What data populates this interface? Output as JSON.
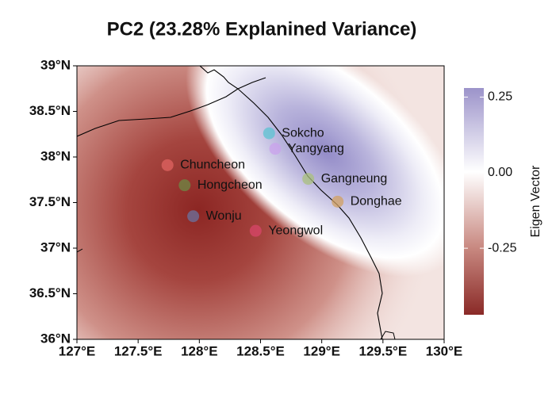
{
  "chart_data": {
    "type": "scatter",
    "title": "PC2 (23.28%  Explanined  Variance)",
    "xlim": [
      127,
      130
    ],
    "ylim": [
      36,
      39
    ],
    "xticks": [
      {
        "value": 127,
        "label": "127°E"
      },
      {
        "value": 127.5,
        "label": "127.5°E"
      },
      {
        "value": 128,
        "label": "128°E"
      },
      {
        "value": 128.5,
        "label": "128.5°E"
      },
      {
        "value": 129,
        "label": "129°E"
      },
      {
        "value": 129.5,
        "label": "129.5°E"
      },
      {
        "value": 130,
        "label": "130°E"
      }
    ],
    "yticks": [
      {
        "value": 36,
        "label": "36°N"
      },
      {
        "value": 36.5,
        "label": "36.5°N"
      },
      {
        "value": 37,
        "label": "37°N"
      },
      {
        "value": 37.5,
        "label": "37.5°N"
      },
      {
        "value": 38,
        "label": "38°N"
      },
      {
        "value": 38.5,
        "label": "38.5°N"
      },
      {
        "value": 39,
        "label": "39°N"
      }
    ],
    "stations": [
      {
        "name": "Sokcho",
        "x": 128.57,
        "y": 38.26,
        "color": "#5bc3d2"
      },
      {
        "name": "Yangyang",
        "x": 128.62,
        "y": 38.09,
        "color": "#c9a2ec"
      },
      {
        "name": "Gangneung",
        "x": 128.89,
        "y": 37.76,
        "color": "#a9c07e"
      },
      {
        "name": "Donghae",
        "x": 129.13,
        "y": 37.51,
        "color": "#d1a062"
      },
      {
        "name": "Chuncheon",
        "x": 127.74,
        "y": 37.91,
        "color": "#e06462"
      },
      {
        "name": "Hongcheon",
        "x": 127.88,
        "y": 37.69,
        "color": "#6c8a44"
      },
      {
        "name": "Wonju",
        "x": 127.95,
        "y": 37.35,
        "color": "#6a73a0"
      },
      {
        "name": "Yeongwol",
        "x": 128.46,
        "y": 37.19,
        "color": "#d8456a"
      }
    ],
    "colorbar": {
      "title": "Eigen Vector",
      "lim": [
        -0.47,
        0.28
      ],
      "ticks": [
        {
          "value": 0.25,
          "label": "0.25"
        },
        {
          "value": 0,
          "label": "0.00"
        },
        {
          "value": -0.25,
          "label": "-0.25"
        }
      ]
    }
  }
}
